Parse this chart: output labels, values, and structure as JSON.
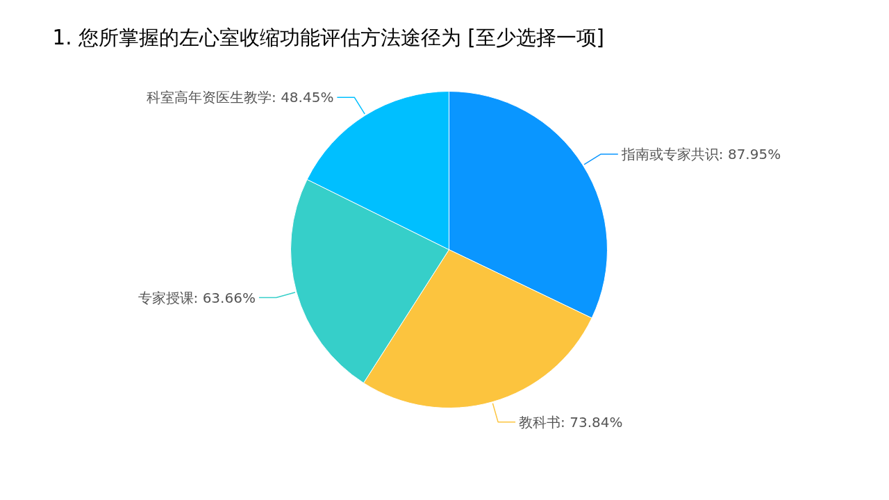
{
  "chart_data": {
    "type": "pie",
    "title": "1. 您所掌握的左心室收缩功能评估方法途径为 [至少选择一项]",
    "categories": [
      "指南或专家共识",
      "教科书",
      "专家授课",
      "科室高年资医生教学"
    ],
    "values": [
      87.95,
      73.84,
      63.66,
      48.45
    ],
    "value_labels": [
      "87.95%",
      "73.84%",
      "63.66%",
      "48.45%"
    ],
    "colors": [
      "#0a96ff",
      "#fcc43e",
      "#36cfc9",
      "#00bfff"
    ]
  }
}
